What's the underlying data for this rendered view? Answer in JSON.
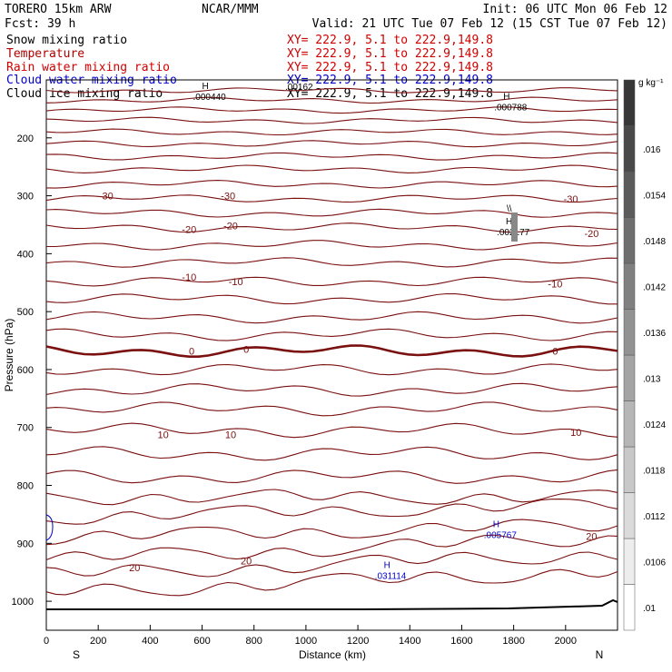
{
  "header": {
    "model": "TORERO  15km ARW",
    "center": "NCAR/MMM",
    "init": "Init: 06 UTC Mon 06 Feb 12",
    "fcst": "Fcst:   39 h",
    "valid": "Valid: 21 UTC Tue 07 Feb 12 (15 CST Tue 07 Feb 12)"
  },
  "legend": [
    {
      "name": "Snow mixing ratio",
      "xy": "XY= 222.9,  5.1 to 222.9,149.8",
      "color": "#000000"
    },
    {
      "name": "Temperature",
      "xy": "XY= 222.9,  5.1 to 222.9,149.8",
      "color": "#b00000"
    },
    {
      "name": "Rain water mixing ratio",
      "xy": "XY= 222.9,  5.1 to 222.9,149.8",
      "color": "#d00000"
    },
    {
      "name": "Cloud water mixing ratio",
      "xy": "XY= 222.9,  5.1 to 222.9,149.8",
      "color": "#0000cc"
    },
    {
      "name": "Cloud ice mixing ratio",
      "xy": "XY= 222.9,  5.1 to 222.9,149.8",
      "color": "#000000"
    }
  ],
  "chart_data": {
    "type": "cross-section contour",
    "xlabel": "Distance (km)",
    "ylabel": "Pressure (hPa)",
    "xlim": [
      0,
      2200
    ],
    "ylim": [
      1050,
      100
    ],
    "x_ticks": [
      "0",
      "200",
      "400",
      "600",
      "800",
      "1000",
      "1200",
      "1400",
      "1600",
      "1800",
      "2000"
    ],
    "y_ticks": [
      "200",
      "300",
      "400",
      "500",
      "600",
      "700",
      "800",
      "900",
      "1000"
    ],
    "x_end_labels": {
      "left": "S",
      "right": "N"
    },
    "colorbar": {
      "unit": "g kg⁻¹",
      "levels": [
        ".01",
        ".0106",
        ".0112",
        ".0118",
        ".0124",
        ".013",
        ".0136",
        ".0142",
        ".0148",
        ".0154",
        ".016"
      ]
    },
    "isotherm_labels": [
      {
        "value": "-30",
        "x": 230,
        "p": 300
      },
      {
        "value": "-30",
        "x": 700,
        "p": 300
      },
      {
        "value": "-30",
        "x": 2020,
        "p": 305
      },
      {
        "value": "-20",
        "x": 550,
        "p": 358
      },
      {
        "value": "-20",
        "x": 710,
        "p": 352
      },
      {
        "value": "-20",
        "x": 2100,
        "p": 365
      },
      {
        "value": "-10",
        "x": 550,
        "p": 440
      },
      {
        "value": "-10",
        "x": 730,
        "p": 448
      },
      {
        "value": "-10",
        "x": 1960,
        "p": 452
      },
      {
        "value": "0",
        "x": 560,
        "p": 568
      },
      {
        "value": "0",
        "x": 770,
        "p": 565
      },
      {
        "value": "0",
        "x": 1960,
        "p": 568
      },
      {
        "value": "10",
        "x": 450,
        "p": 712
      },
      {
        "value": "10",
        "x": 710,
        "p": 712
      },
      {
        "value": "10",
        "x": 2040,
        "p": 708
      },
      {
        "value": "20",
        "x": 340,
        "p": 942
      },
      {
        "value": "20",
        "x": 770,
        "p": 930
      },
      {
        "value": "20",
        "x": 2100,
        "p": 888
      }
    ],
    "maxima": [
      {
        "mark": "H",
        "value": ".000440",
        "x": 600,
        "p": 128,
        "color": "#000000"
      },
      {
        "mark": "H",
        "value": ".000788",
        "x": 1760,
        "p": 146,
        "color": "#000000"
      },
      {
        "mark": "H",
        "value": ".002177",
        "x": 1770,
        "p": 362,
        "color": "#000000"
      },
      {
        "mark": "H",
        "value": ".005767",
        "x": 1720,
        "p": 885,
        "color": "#0000cc"
      },
      {
        "mark": "H",
        "value": ".031114",
        "x": 1300,
        "p": 955,
        "color": "#0000cc"
      }
    ],
    "clipped_label": ".00162",
    "cloud_ice_feature_mark": "\\\\"
  }
}
